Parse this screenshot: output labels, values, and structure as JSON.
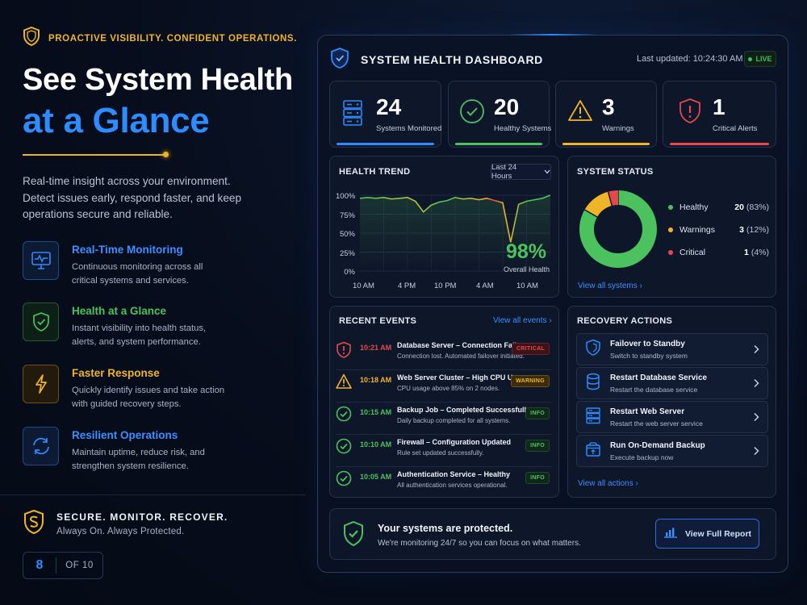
{
  "left": {
    "tagline": "PROACTIVE VISIBILITY. CONFIDENT OPERATIONS.",
    "hero_line1": "See System Health",
    "hero_line2": "at a Glance",
    "intro": "Real-time insight across your environment. Detect issues early, respond faster, and keep operations secure and reliable.",
    "features": [
      {
        "title": "Real-Time Monitoring",
        "desc": "Continuous monitoring across all critical systems and services.",
        "icon": "monitor-icon",
        "color": "#2d8cff"
      },
      {
        "title": "Health at a Glance",
        "desc": "Instant visibility into health status, alerts, and system performance.",
        "icon": "shield-check-icon",
        "color": "#4cc25e"
      },
      {
        "title": "Faster Response",
        "desc": "Quickly identify issues and take action with guided recovery steps.",
        "icon": "lightning-icon",
        "color": "#f0b429"
      },
      {
        "title": "Resilient Operations",
        "desc": "Maintain uptime, reduce risk, and strengthen system resilience.",
        "icon": "refresh-icon",
        "color": "#2d8cff"
      }
    ],
    "secure_title": "SECURE. MONITOR. RECOVER.",
    "secure_sub": "Always On. Always Protected.",
    "page_current": "8",
    "page_total": "OF 10"
  },
  "dashboard": {
    "title": "SYSTEM HEALTH DASHBOARD",
    "last_updated": "Last updated: 10:24:30 AM",
    "live": "LIVE",
    "stats": [
      {
        "value": "24",
        "label": "Systems Monitored",
        "color": "#2d8cff",
        "icon": "server-icon"
      },
      {
        "value": "20",
        "label": "Healthy Systems",
        "color": "#4cc25e",
        "icon": "check-circle-icon"
      },
      {
        "value": "3",
        "label": "Warnings",
        "color": "#f0b429",
        "icon": "warning-icon"
      },
      {
        "value": "1",
        "label": "Critical Alerts",
        "color": "#e5484d",
        "icon": "alert-shield-icon"
      }
    ],
    "trend": {
      "title": "HEALTH TREND",
      "range": "Last 24 Hours",
      "y_ticks": [
        "100%",
        "75%",
        "50%",
        "25%",
        "0%"
      ],
      "x_ticks": [
        "10 AM",
        "4 PM",
        "10 PM",
        "4 AM",
        "10 AM"
      ],
      "overall_value": "98%",
      "overall_label": "Overall Health"
    },
    "status": {
      "title": "SYSTEM STATUS",
      "items": [
        {
          "name": "Healthy",
          "count": "20",
          "pct": "(83%)",
          "color": "#4cc25e"
        },
        {
          "name": "Warnings",
          "count": "3",
          "pct": "(12%)",
          "color": "#f0b429"
        },
        {
          "name": "Critical",
          "count": "1",
          "pct": "(4%)",
          "color": "#e5484d"
        }
      ],
      "link": "View all systems"
    },
    "events": {
      "title": "RECENT EVENTS",
      "link": "View all events",
      "items": [
        {
          "time": "10:21 AM",
          "title": "Database Server – Connection Failure",
          "desc": "Connection lost. Automated failover initiated.",
          "badge": "CRITICAL",
          "level": "critical"
        },
        {
          "time": "10:18 AM",
          "title": "Web Server Cluster – High CPU Usage",
          "desc": "CPU usage above 85% on 2 nodes.",
          "badge": "WARNING",
          "level": "warning"
        },
        {
          "time": "10:15 AM",
          "title": "Backup Job – Completed Successfully",
          "desc": "Daily backup completed for all systems.",
          "badge": "INFO",
          "level": "info"
        },
        {
          "time": "10:10 AM",
          "title": "Firewall – Configuration Updated",
          "desc": "Rule set updated successfully.",
          "badge": "INFO",
          "level": "info"
        },
        {
          "time": "10:05 AM",
          "title": "Authentication Service – Healthy",
          "desc": "All authentication services operational.",
          "badge": "INFO",
          "level": "info"
        }
      ]
    },
    "recovery": {
      "title": "RECOVERY ACTIONS",
      "link": "View all actions",
      "items": [
        {
          "title": "Failover to Standby",
          "desc": "Switch to standby system",
          "icon": "shield-icon"
        },
        {
          "title": "Restart Database Service",
          "desc": "Restart the database service",
          "icon": "database-icon"
        },
        {
          "title": "Restart Web Server",
          "desc": "Restart the web server service",
          "icon": "server-icon"
        },
        {
          "title": "Run On-Demand Backup",
          "desc": "Execute backup now",
          "icon": "backup-icon"
        }
      ]
    },
    "protected": {
      "title": "Your systems are protected.",
      "subtitle": "We're monitoring 24/7 so you can focus on what matters.",
      "button": "View Full Report"
    }
  },
  "chart_data": [
    {
      "type": "line",
      "title": "HEALTH TREND",
      "x": [
        "10 AM",
        "",
        "",
        "",
        "",
        "",
        "4 PM",
        "",
        "",
        "",
        "",
        "",
        "10 PM",
        "",
        "",
        "",
        "",
        "",
        "4 AM",
        "",
        "",
        "",
        "",
        "",
        "10 AM"
      ],
      "series": [
        {
          "values": [
            96,
            97,
            96,
            97,
            95,
            96,
            97,
            92,
            78,
            87,
            91,
            93,
            97,
            95,
            96,
            94,
            96,
            93,
            90,
            38,
            88,
            92,
            94,
            96,
            100
          ]
        }
      ],
      "ylim": [
        0,
        100
      ],
      "ylabel": "",
      "xlabel": "",
      "y_ticks": [
        "100%",
        "75%",
        "50%",
        "25%",
        "0%"
      ],
      "grid": true
    },
    {
      "type": "pie",
      "title": "SYSTEM STATUS",
      "categories": [
        "Healthy",
        "Warnings",
        "Critical"
      ],
      "values": [
        20,
        3,
        1
      ],
      "colors": [
        "#4cc25e",
        "#f0b429",
        "#e5484d"
      ],
      "donut": true,
      "legend": "right"
    }
  ]
}
